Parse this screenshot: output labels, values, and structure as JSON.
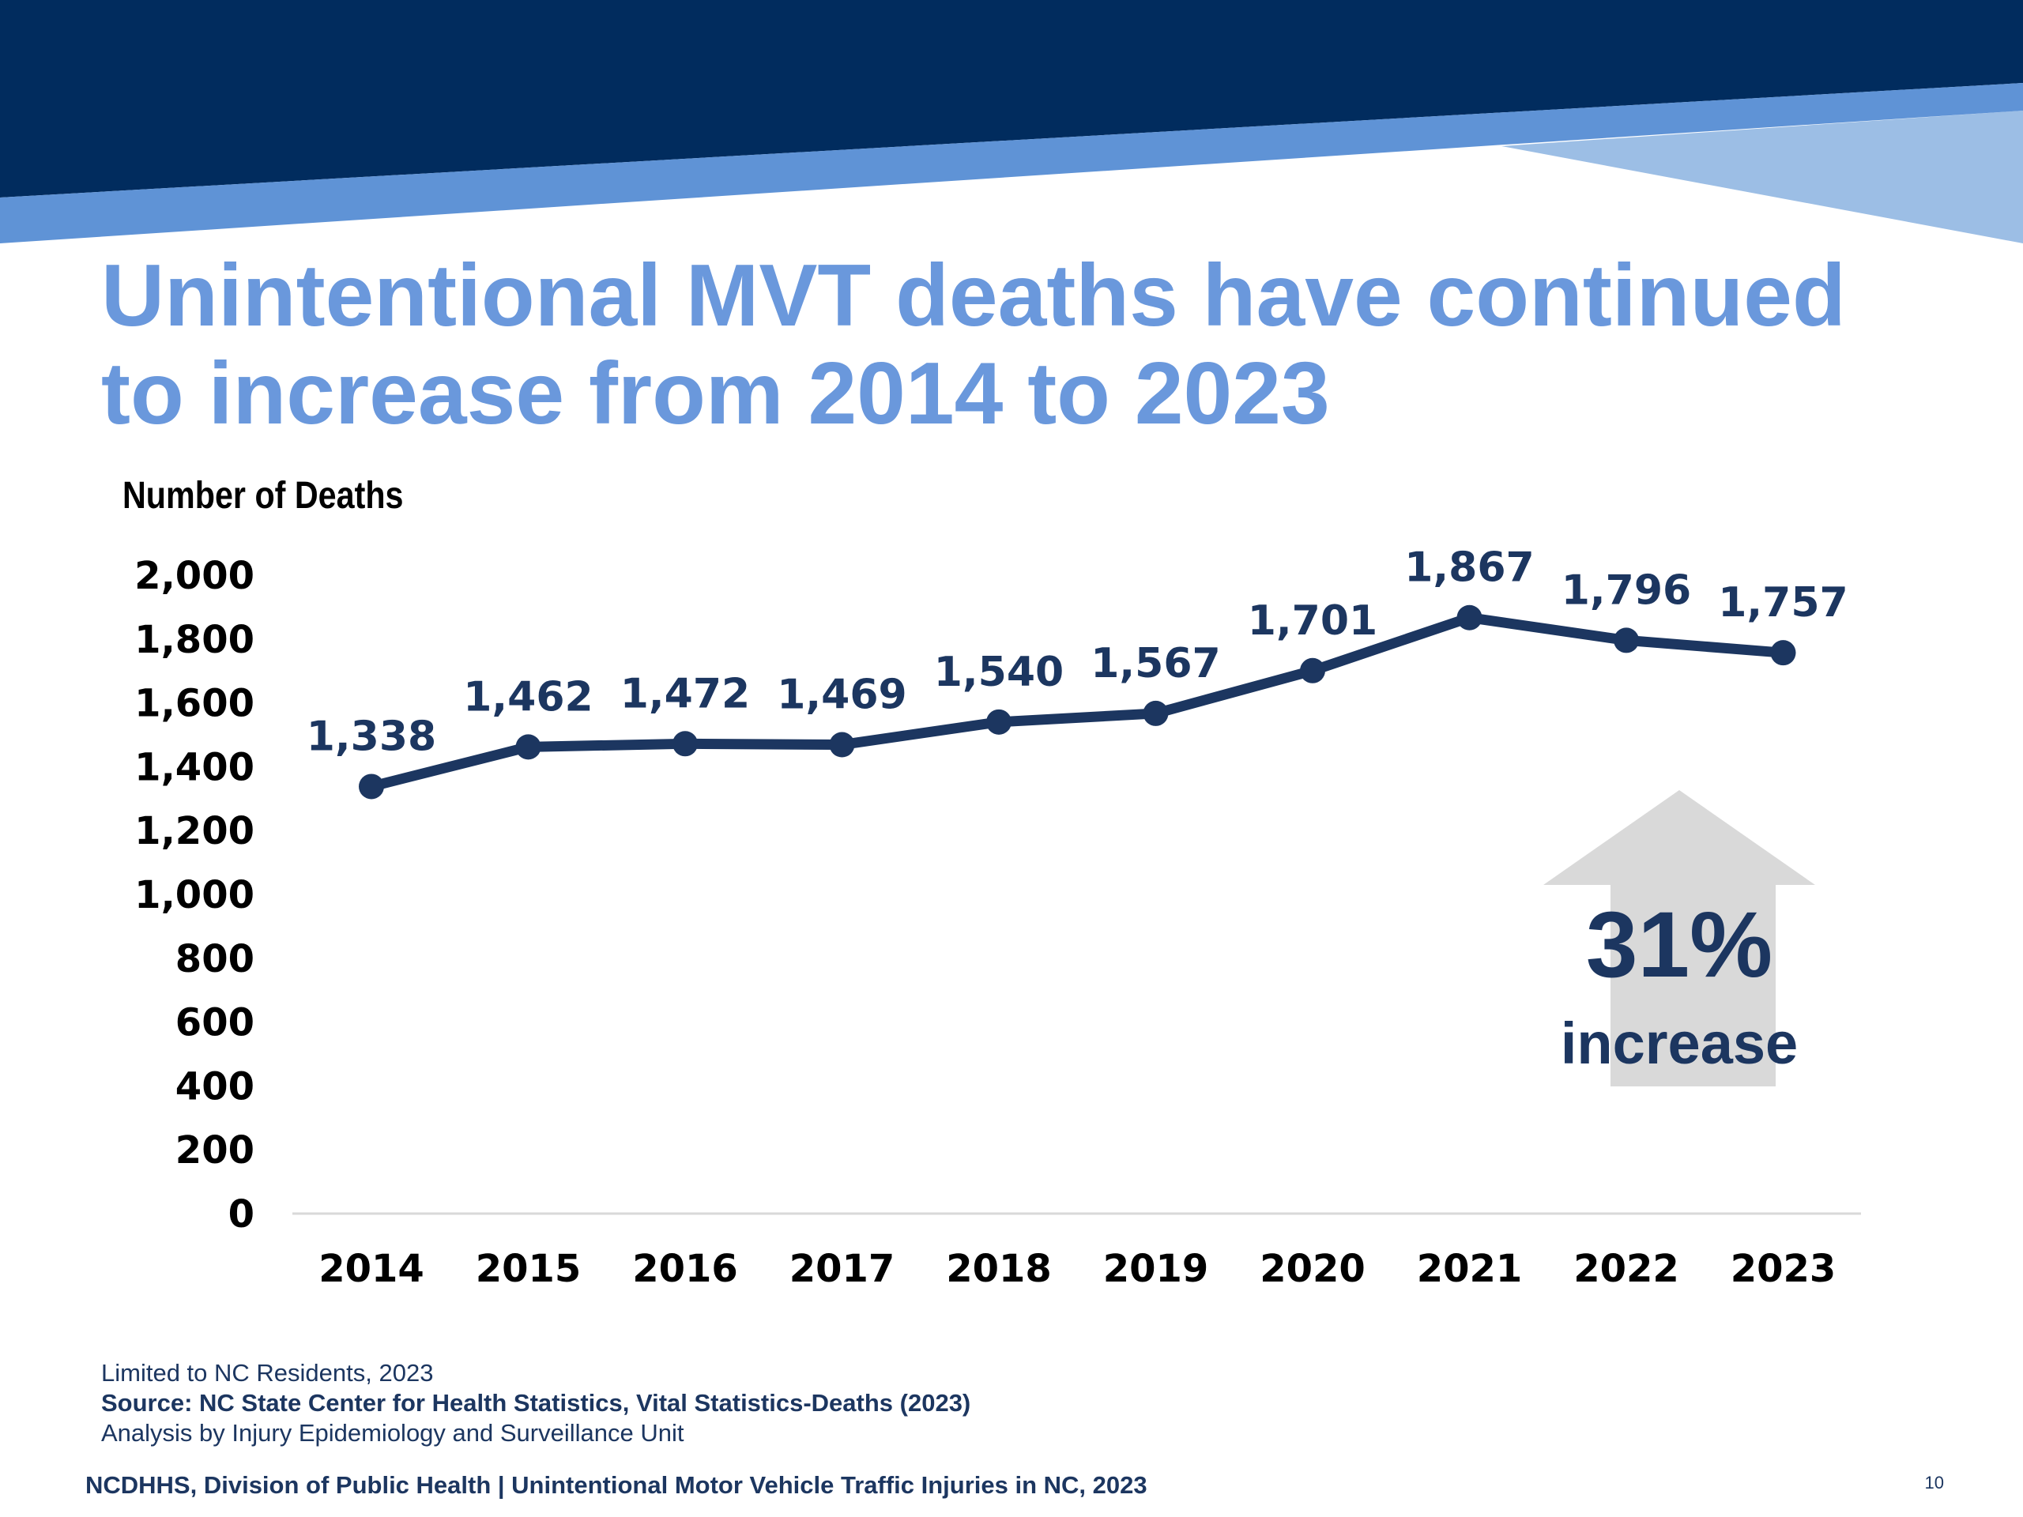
{
  "title": {
    "line1": "Unintentional MVT deaths have continued",
    "line2": "to increase from 2014 to 2023"
  },
  "chart_data": {
    "type": "line",
    "ylabel": "Number of Deaths",
    "xlabel": "",
    "x": [
      "2014",
      "2015",
      "2016",
      "2017",
      "2018",
      "2019",
      "2020",
      "2021",
      "2022",
      "2023"
    ],
    "series": [
      {
        "values": [
          1338,
          1462,
          1472,
          1469,
          1540,
          1567,
          1701,
          1867,
          1796,
          1757
        ]
      }
    ],
    "data_labels": [
      "1,338",
      "1,462",
      "1,472",
      "1,469",
      "1,540",
      "1,567",
      "1,701",
      "1,867",
      "1,796",
      "1,757"
    ],
    "ylim": [
      0,
      2000
    ],
    "yticks": [
      0,
      200,
      400,
      600,
      800,
      1000,
      1200,
      1400,
      1600,
      1800,
      2000
    ],
    "ytick_labels": [
      "0",
      "200",
      "400",
      "600",
      "800",
      "1,000",
      "1,200",
      "1,400",
      "1,600",
      "1,800",
      "2,000"
    ],
    "grid": false,
    "line_color": "#1c3660",
    "annotation": {
      "value": "31%",
      "text": "increase"
    }
  },
  "notes": {
    "line1": "Limited to NC Residents, 2023",
    "line2": "Source: NC State Center for Health Statistics, Vital Statistics-Deaths (2023)",
    "line3": "Analysis by Injury Epidemiology and Surveillance Unit"
  },
  "footer": {
    "text": "NCDHHS, Division of Public Health | Unintentional Motor Vehicle Traffic Injuries in NC, 2023",
    "page_number": "10"
  },
  "colors": {
    "navy": "#012c5e",
    "mid_blue": "#5f93d6",
    "light_blue": "#9cbee5",
    "title_blue": "#6a98dc",
    "dark_navy": "#1c3660",
    "arrow_gray": "#d9d9d9"
  }
}
